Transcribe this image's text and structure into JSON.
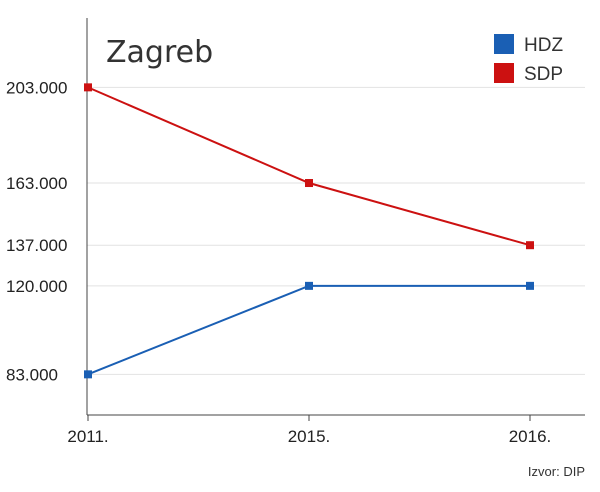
{
  "chart_data": {
    "type": "line",
    "title": "Zagreb",
    "categories": [
      "2011.",
      "2015.",
      "2016."
    ],
    "yticks": [
      {
        "value": 83000,
        "label": "83.000"
      },
      {
        "value": 120000,
        "label": "120.000"
      },
      {
        "value": 137000,
        "label": "137.000"
      },
      {
        "value": 163000,
        "label": "163.000"
      },
      {
        "value": 203000,
        "label": "203.000"
      }
    ],
    "ylim": [
      66000,
      232000
    ],
    "grid": true,
    "legend_position": "top-right",
    "series": [
      {
        "name": "HDZ",
        "color": "#1a5fb4",
        "values": [
          83000,
          120000,
          120000
        ]
      },
      {
        "name": "SDP",
        "color": "#cc1111",
        "values": [
          203000,
          163000,
          137000
        ]
      }
    ],
    "source": "Izvor: DIP"
  }
}
